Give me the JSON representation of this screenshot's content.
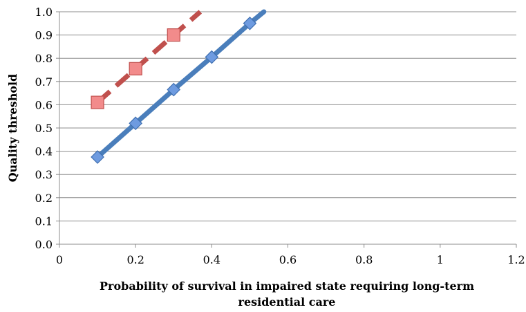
{
  "chart_data": {
    "type": "line",
    "title": "",
    "xlabel_line1": "Probability of survival in impaired state requiring long-term",
    "xlabel_line2": "residential care",
    "ylabel": "Quality threshold",
    "xlim": [
      0,
      1.2
    ],
    "ylim": [
      0,
      1.0
    ],
    "x_ticks": [
      0,
      0.2,
      0.4,
      0.6,
      0.8,
      1,
      1.2
    ],
    "x_tick_labels": [
      "0",
      "0.2",
      "0.4",
      "0.6",
      "0.8",
      "1",
      "1.2"
    ],
    "y_ticks": [
      0,
      0.1,
      0.2,
      0.3,
      0.4,
      0.5,
      0.6,
      0.7,
      0.8,
      0.9,
      1.0
    ],
    "y_tick_labels": [
      "0.0",
      "0.1",
      "0.2",
      "0.3",
      "0.4",
      "0.5",
      "0.6",
      "0.7",
      "0.8",
      "0.9",
      "1.0"
    ],
    "grid": "horizontal",
    "legend": "none",
    "series": [
      {
        "line_style": "solid",
        "marker": "diamond",
        "color": "#4A7EBB",
        "marker_color": "#6E9BE0",
        "points": [
          [
            0.1,
            0.375
          ],
          [
            0.2,
            0.52
          ],
          [
            0.3,
            0.665
          ],
          [
            0.4,
            0.805
          ],
          [
            0.5,
            0.95
          ]
        ],
        "line_extends_to": [
          0.537,
          1.0
        ]
      },
      {
        "line_style": "dashed",
        "marker": "square",
        "color": "#C0504D",
        "marker_color": "#F28B8B",
        "points": [
          [
            0.1,
            0.61
          ],
          [
            0.2,
            0.755
          ],
          [
            0.3,
            0.9
          ]
        ],
        "line_extends_to": [
          0.37,
          1.0
        ]
      }
    ]
  }
}
